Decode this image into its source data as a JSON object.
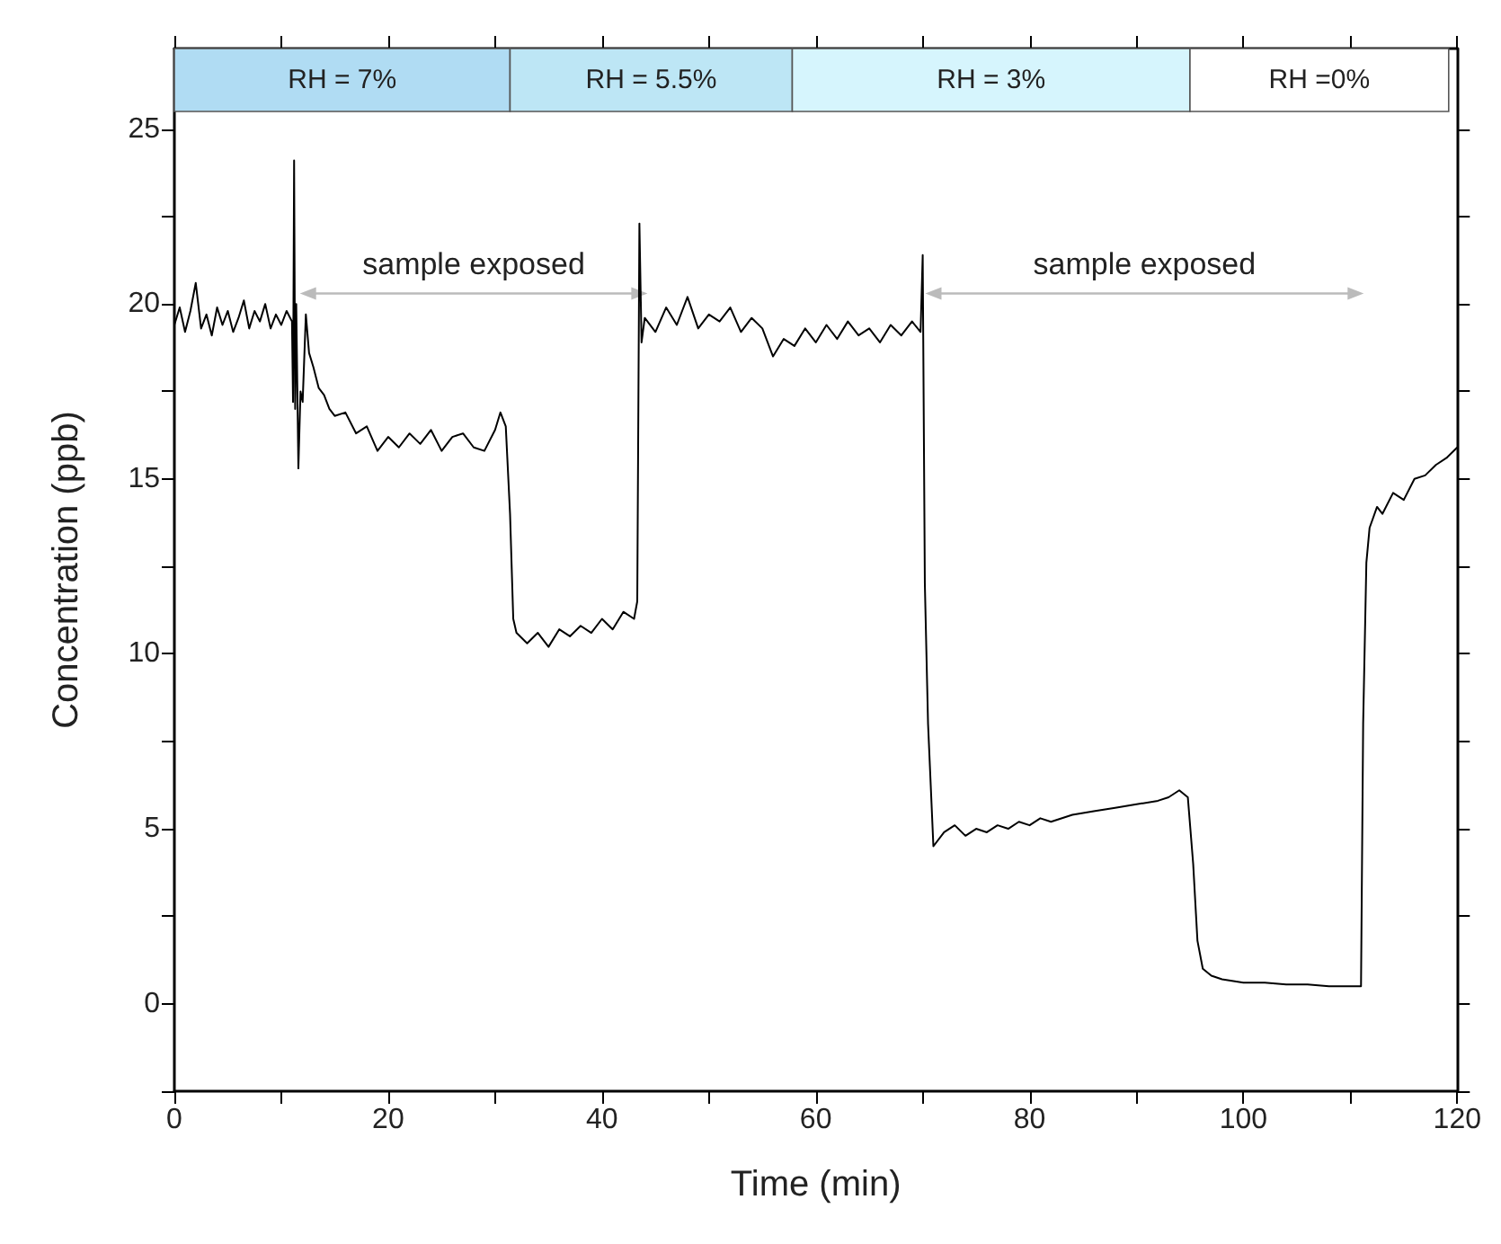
{
  "chart_data": {
    "type": "line",
    "xlabel": "Time (min)",
    "ylabel": "Concentration (ppb)",
    "xlim": [
      0,
      120
    ],
    "ylim": [
      -2.5,
      27.3
    ],
    "xticks": [
      0,
      {
        "value": 10,
        "label": null
      },
      20,
      {
        "value": 30,
        "label": null
      },
      40,
      {
        "value": 50,
        "label": null
      },
      60,
      {
        "value": 70,
        "label": null
      },
      80,
      {
        "value": 90,
        "label": null
      },
      100,
      {
        "value": 110,
        "label": null
      },
      120
    ],
    "yticks": [
      {
        "value": -2.5,
        "label": null
      },
      0,
      {
        "value": 2.5,
        "label": null
      },
      5,
      {
        "value": 7.5,
        "label": null
      },
      10,
      {
        "value": 12.5,
        "label": null
      },
      15,
      {
        "value": 17.5,
        "label": null
      },
      20,
      {
        "value": 22.5,
        "label": null
      },
      25
    ],
    "grid": false,
    "marker": "none",
    "line_style": "solid",
    "series": [
      {
        "color": "#000000",
        "x": [
          0,
          0.5,
          1,
          1.5,
          2,
          2.5,
          3,
          3.5,
          4,
          4.5,
          5,
          5.5,
          6,
          6.5,
          7,
          7.5,
          8,
          8.5,
          9,
          9.5,
          10,
          10.5,
          11,
          11.1,
          11.2,
          11.3,
          11.4,
          11.6,
          11.8,
          12.0,
          12.3,
          12.6,
          13,
          13.5,
          14,
          14.5,
          15,
          16,
          17,
          18,
          19,
          20,
          21,
          22,
          23,
          24,
          25,
          26,
          27,
          28,
          29,
          30,
          30.5,
          31,
          31.4,
          31.7,
          32,
          33,
          34,
          35,
          36,
          37,
          38,
          39,
          40,
          41,
          42,
          43,
          43.3,
          43.5,
          43.7,
          44,
          45,
          46,
          47,
          48,
          49,
          50,
          51,
          52,
          53,
          54,
          55,
          56,
          57,
          58,
          59,
          60,
          61,
          62,
          63,
          64,
          65,
          66,
          67,
          68,
          69,
          69.8,
          70.0,
          70.2,
          70.5,
          71,
          72,
          73,
          74,
          75,
          76,
          77,
          78,
          79,
          80,
          81,
          82,
          84,
          86,
          88,
          90,
          92,
          93,
          94,
          94.8,
          95.3,
          95.7,
          96.2,
          97,
          98,
          100,
          102,
          104,
          106,
          108,
          110,
          111,
          111.2,
          111.5,
          111.8,
          112.5,
          113,
          114,
          115,
          116,
          117,
          118,
          119,
          120
        ],
        "values": [
          19.4,
          19.9,
          19.2,
          19.8,
          20.6,
          19.3,
          19.7,
          19.1,
          19.9,
          19.4,
          19.8,
          19.2,
          19.6,
          20.1,
          19.3,
          19.8,
          19.5,
          20.0,
          19.3,
          19.7,
          19.4,
          19.8,
          19.5,
          17.2,
          24.1,
          17.0,
          20.0,
          15.3,
          17.5,
          17.2,
          19.7,
          18.6,
          18.2,
          17.6,
          17.4,
          17.0,
          16.8,
          16.9,
          16.3,
          16.5,
          15.8,
          16.2,
          15.9,
          16.3,
          16.0,
          16.4,
          15.8,
          16.2,
          16.3,
          15.9,
          15.8,
          16.4,
          16.9,
          16.5,
          14.0,
          11.0,
          10.6,
          10.3,
          10.6,
          10.2,
          10.7,
          10.5,
          10.8,
          10.6,
          11.0,
          10.7,
          11.2,
          11.0,
          11.5,
          22.3,
          18.9,
          19.6,
          19.2,
          19.9,
          19.4,
          20.2,
          19.3,
          19.7,
          19.5,
          19.9,
          19.2,
          19.6,
          19.3,
          18.5,
          19.0,
          18.8,
          19.3,
          18.9,
          19.4,
          19.0,
          19.5,
          19.1,
          19.3,
          18.9,
          19.4,
          19.1,
          19.5,
          19.2,
          21.4,
          12.0,
          8.0,
          4.5,
          4.9,
          5.1,
          4.8,
          5.0,
          4.9,
          5.1,
          5.0,
          5.2,
          5.1,
          5.3,
          5.2,
          5.4,
          5.5,
          5.6,
          5.7,
          5.8,
          5.9,
          6.1,
          5.9,
          4.0,
          1.8,
          1.0,
          0.8,
          0.7,
          0.6,
          0.6,
          0.55,
          0.55,
          0.5,
          0.5,
          0.5,
          8.0,
          12.6,
          13.6,
          14.2,
          14.0,
          14.6,
          14.4,
          15.0,
          15.1,
          15.4,
          15.6,
          15.9
        ]
      },
      {
        "type": "line",
        "color": "#bbbbbb",
        "marker": "triangle",
        "x": [
          12.5,
          43.5
        ],
        "values": [
          20.3,
          20.3
        ]
      },
      {
        "type": "line",
        "color": "#bbbbbb",
        "marker": "triangle",
        "x": [
          71,
          110.5
        ],
        "values": [
          20.3,
          20.3
        ]
      }
    ],
    "annotations": [
      {
        "text": "sample exposed",
        "x": 28,
        "y": 20.3
      },
      {
        "text": "sample exposed",
        "x": 90.75,
        "y": 20.3
      }
    ],
    "bands": [
      {
        "axis": "x",
        "from": 0,
        "to": 31.4,
        "label": "RH = 7%",
        "color": "#b0dcf3"
      },
      {
        "axis": "x",
        "from": 31.4,
        "to": 57.8,
        "label": "RH = 5.5%",
        "color": "#bde6f5"
      },
      {
        "axis": "x",
        "from": 57.8,
        "to": 95,
        "label": "RH = 3%",
        "color": "#d6f5fd"
      },
      {
        "axis": "x",
        "from": 95,
        "to": 119.2,
        "label": "RH =0%",
        "color": "#ffffff"
      }
    ]
  }
}
